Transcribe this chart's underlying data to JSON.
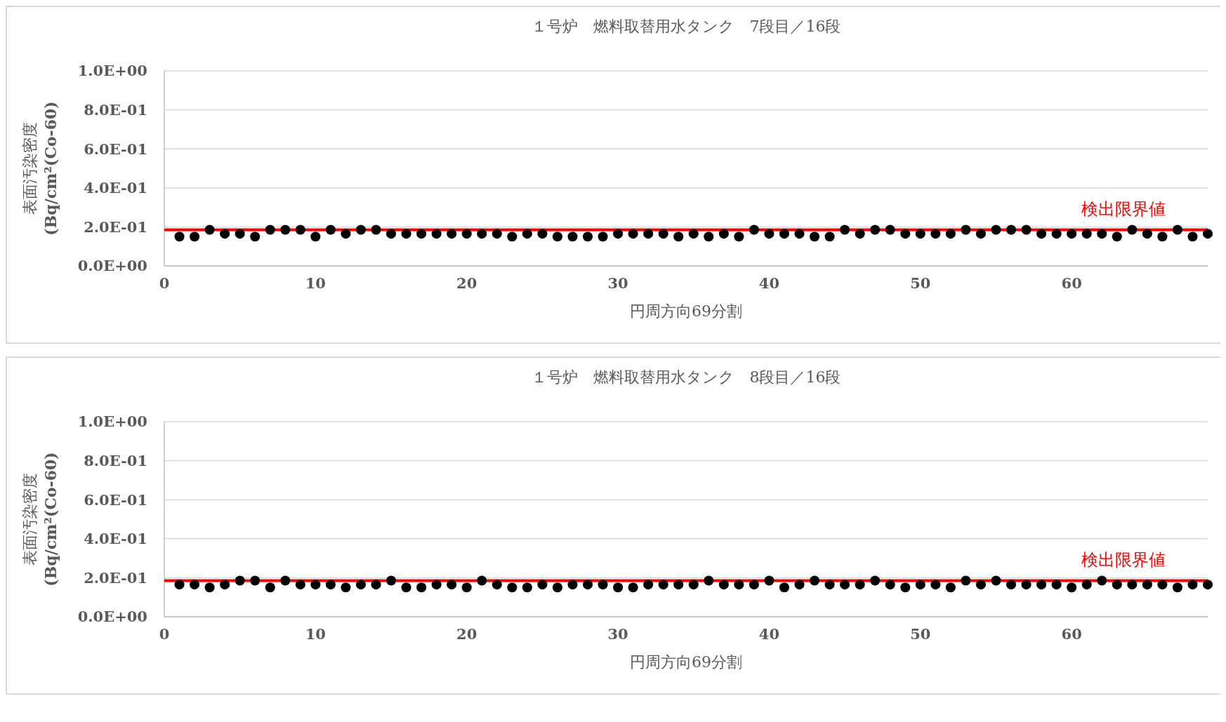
{
  "chart_data": [
    {
      "type": "scatter",
      "title": "１号炉　燃料取替用水タンク　7段目／16段",
      "xlabel": "円周方向69分割",
      "ylabel": "表面汚染密度\n(Bq/cm²(Co-60)",
      "x": [
        1,
        2,
        3,
        4,
        5,
        6,
        7,
        8,
        9,
        10,
        11,
        12,
        13,
        14,
        15,
        16,
        17,
        18,
        19,
        20,
        21,
        22,
        23,
        24,
        25,
        26,
        27,
        28,
        29,
        30,
        31,
        32,
        33,
        34,
        35,
        36,
        37,
        38,
        39,
        40,
        41,
        42,
        43,
        44,
        45,
        46,
        47,
        48,
        49,
        50,
        51,
        52,
        53,
        54,
        55,
        56,
        57,
        58,
        59,
        60,
        61,
        62,
        63,
        64,
        65,
        66,
        67,
        68,
        69
      ],
      "series": [
        {
          "color": "#000000",
          "values": [
            0.15,
            0.15,
            0.185,
            0.165,
            0.165,
            0.15,
            0.185,
            0.185,
            0.185,
            0.15,
            0.185,
            0.165,
            0.185,
            0.185,
            0.165,
            0.165,
            0.165,
            0.165,
            0.165,
            0.165,
            0.165,
            0.165,
            0.15,
            0.165,
            0.165,
            0.15,
            0.15,
            0.15,
            0.15,
            0.165,
            0.165,
            0.165,
            0.165,
            0.15,
            0.165,
            0.15,
            0.165,
            0.15,
            0.185,
            0.165,
            0.165,
            0.165,
            0.15,
            0.15,
            0.185,
            0.165,
            0.185,
            0.185,
            0.165,
            0.165,
            0.165,
            0.165,
            0.185,
            0.165,
            0.185,
            0.185,
            0.185,
            0.165,
            0.165,
            0.165,
            0.165,
            0.165,
            0.15,
            0.185,
            0.165,
            0.15,
            0.185,
            0.15,
            0.165
          ]
        }
      ],
      "xlim": [
        0,
        69
      ],
      "xticks": [
        0,
        10,
        20,
        30,
        40,
        50,
        60
      ],
      "ylim": [
        0,
        1
      ],
      "yticks": [
        {
          "value": 0,
          "label": "0.0E+00"
        },
        {
          "value": 0.2,
          "label": "2.0E-01"
        },
        {
          "value": 0.4,
          "label": "4.0E-01"
        },
        {
          "value": 0.6,
          "label": "6.0E-01"
        },
        {
          "value": 0.8,
          "label": "8.0E-01"
        },
        {
          "value": 1,
          "label": "1.0E+00"
        }
      ],
      "grid": "y",
      "marker": "circle",
      "ref_lines": [
        {
          "axis": "y",
          "value": 0.185,
          "label": "検出限界値",
          "color": "#ff0000"
        }
      ]
    },
    {
      "type": "scatter",
      "title": "１号炉　燃料取替用水タンク　8段目／16段",
      "xlabel": "円周方向69分割",
      "ylabel": "表面汚染密度\n(Bq/cm²(Co-60)",
      "x": [
        1,
        2,
        3,
        4,
        5,
        6,
        7,
        8,
        9,
        10,
        11,
        12,
        13,
        14,
        15,
        16,
        17,
        18,
        19,
        20,
        21,
        22,
        23,
        24,
        25,
        26,
        27,
        28,
        29,
        30,
        31,
        32,
        33,
        34,
        35,
        36,
        37,
        38,
        39,
        40,
        41,
        42,
        43,
        44,
        45,
        46,
        47,
        48,
        49,
        50,
        51,
        52,
        53,
        54,
        55,
        56,
        57,
        58,
        59,
        60,
        61,
        62,
        63,
        64,
        65,
        66,
        67,
        68,
        69
      ],
      "series": [
        {
          "color": "#000000",
          "values": [
            0.165,
            0.165,
            0.15,
            0.165,
            0.185,
            0.185,
            0.15,
            0.185,
            0.165,
            0.165,
            0.165,
            0.15,
            0.165,
            0.165,
            0.185,
            0.15,
            0.15,
            0.165,
            0.165,
            0.15,
            0.185,
            0.165,
            0.15,
            0.15,
            0.165,
            0.15,
            0.165,
            0.165,
            0.165,
            0.15,
            0.15,
            0.165,
            0.165,
            0.165,
            0.165,
            0.185,
            0.165,
            0.165,
            0.165,
            0.185,
            0.15,
            0.165,
            0.185,
            0.165,
            0.165,
            0.165,
            0.185,
            0.165,
            0.15,
            0.165,
            0.165,
            0.15,
            0.185,
            0.165,
            0.185,
            0.165,
            0.165,
            0.165,
            0.165,
            0.15,
            0.165,
            0.185,
            0.165,
            0.165,
            0.165,
            0.165,
            0.15,
            0.165,
            0.165
          ]
        }
      ],
      "xlim": [
        0,
        69
      ],
      "xticks": [
        0,
        10,
        20,
        30,
        40,
        50,
        60
      ],
      "ylim": [
        0,
        1
      ],
      "yticks": [
        {
          "value": 0,
          "label": "0.0E+00"
        },
        {
          "value": 0.2,
          "label": "2.0E-01"
        },
        {
          "value": 0.4,
          "label": "4.0E-01"
        },
        {
          "value": 0.6,
          "label": "6.0E-01"
        },
        {
          "value": 0.8,
          "label": "8.0E-01"
        },
        {
          "value": 1,
          "label": "1.0E+00"
        }
      ],
      "grid": "y",
      "marker": "circle",
      "ref_lines": [
        {
          "axis": "y",
          "value": 0.185,
          "label": "検出限界値",
          "color": "#ff0000"
        }
      ]
    }
  ]
}
